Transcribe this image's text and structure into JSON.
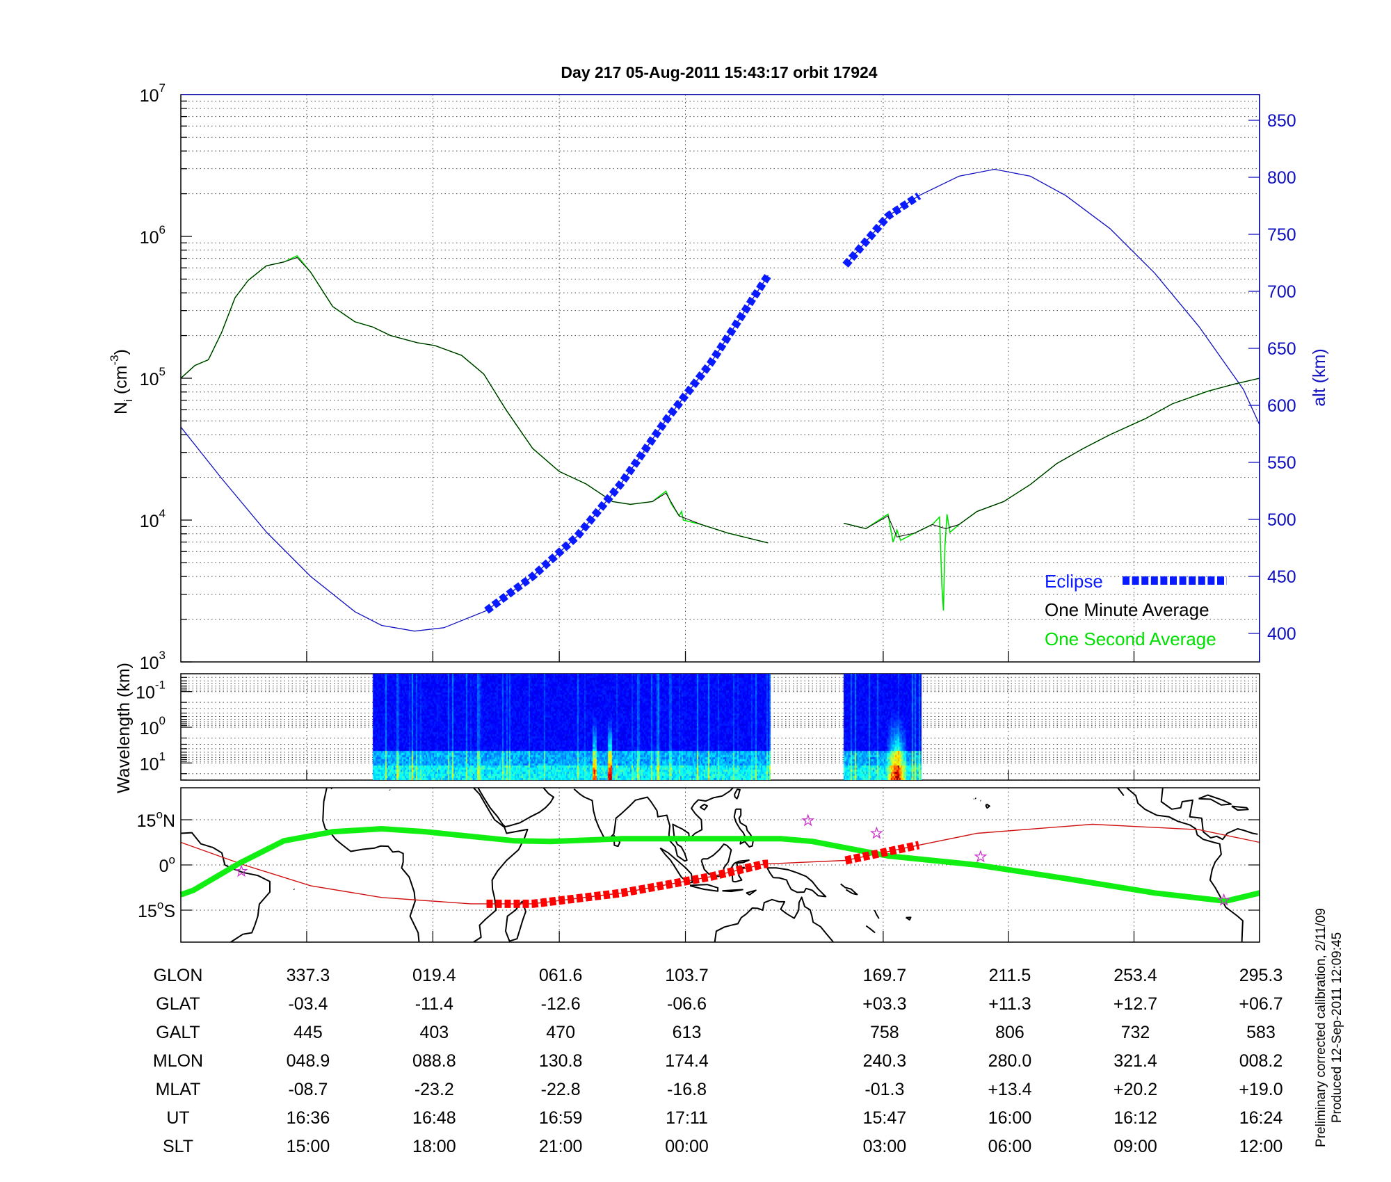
{
  "title": "Day 217  05-Aug-2011 15:43:17   orbit 17924",
  "footnote": {
    "line1": "Preliminary corrected calibration, 2/11/09",
    "line2": "Produced 12-Sep-2011 12:09:45"
  },
  "colors": {
    "eclipse": "#0a1aff",
    "minute": "#000000",
    "second": "#00e000",
    "alt": "#1010c0",
    "orbit": "#d01010",
    "dip_equator": "#11ee11",
    "star": "#cc33cc"
  },
  "chart_data": [
    {
      "type": "line",
      "title": "Day 217  05-Aug-2011 15:43:17   orbit 17924",
      "xlabel": "",
      "ylabel": "N",
      "ylabel_sub": "i",
      "ylabel_unit": "(cm",
      "ylabel_unit_exp": "-3",
      "ylabel_close": ")",
      "y2label": "alt (km)",
      "yscale": "log",
      "ylim": [
        1000,
        10000000
      ],
      "y2lim": [
        375,
        875
      ],
      "xlim": [
        295.3,
        655.3
      ],
      "grid": true,
      "yticks": [
        {
          "base": "10",
          "exp": "3",
          "value": 3
        },
        {
          "base": "10",
          "exp": "4",
          "value": 4
        },
        {
          "base": "10",
          "exp": "5",
          "value": 5
        },
        {
          "base": "10",
          "exp": "6",
          "value": 6
        },
        {
          "base": "10",
          "exp": "7",
          "value": 7
        }
      ],
      "y2ticks": [
        "400",
        "450",
        "500",
        "550",
        "600",
        "650",
        "700",
        "750",
        "800",
        "850"
      ],
      "legend": {
        "placement": "bottom-right",
        "eclipse": "Eclipse",
        "minute": "One Minute Average",
        "second": "One Second Average"
      },
      "series": [
        {
          "name": "One Minute Average",
          "segments": [
            {
              "x": [
                295.3,
                300.0,
                304.5,
                308.9,
                313.4,
                317.8,
                323.8,
                329.7,
                334.1,
                338.6,
                346.0,
                353.4,
                359.3,
                365.3,
                374.2,
                380.1,
                389.0,
                396.4,
                403.8,
                412.7,
                421.6,
                430.5,
                439.4,
                445.3,
                452.7,
                457.2,
                461.6,
                469.0,
                477.9,
                491.3
              ],
              "y": [
                100000.0,
                123000.0,
                135000.0,
                210000.0,
                370000.0,
                490000.0,
                620000.0,
                660000.0,
                710000.0,
                560000.0,
                320000.0,
                250000.0,
                230000.0,
                200000.0,
                178000.0,
                170000.0,
                145000.0,
                107000.0,
                60000.0,
                32000.0,
                22000.0,
                18000.0,
                13500.0,
                12900.0,
                13500.0,
                15500.0,
                10700.0,
                9300.0,
                8100.0,
                6900.0
              ]
            },
            {
              "x": [
                516.5,
                523.9,
                531.3,
                534.3,
                540.2,
                546.1,
                550.6,
                555.0,
                561.0,
                569.9,
                578.8,
                587.6,
                596.5,
                605.4,
                617.3,
                626.2,
                638.0,
                646.9,
                655.3
              ],
              "y": [
                9500.0,
                8700.0,
                10700.0,
                7600.0,
                8100.0,
                9300.0,
                8700.0,
                9300.0,
                11500.0,
                13500.0,
                17800.0,
                25000.0,
                32000.0,
                40000.0,
                52000.0,
                66000.0,
                81000.0,
                91000.0,
                100000.0
              ]
            }
          ]
        },
        {
          "name": "One Second Average",
          "segments": [
            {
              "x": [
                295.3,
                300.0,
                304.5,
                308.9,
                313.4,
                317.8,
                323.8,
                329.7,
                334.1,
                338.6,
                346.0,
                353.4,
                359.3,
                365.3,
                374.2,
                380.1,
                389.0,
                396.4,
                403.8,
                412.7,
                421.6,
                430.5,
                439.4,
                445.3,
                452.7,
                457.2,
                459.0,
                461.6,
                462.4,
                463.0,
                469.0,
                477.9,
                491.3
              ],
              "y": [
                100000.0,
                123000.0,
                135000.0,
                210000.0,
                370000.0,
                490000.0,
                620000.0,
                660000.0,
                730000.0,
                560000.0,
                320000.0,
                250000.0,
                230000.0,
                200000.0,
                178000.0,
                170000.0,
                145000.0,
                107000.0,
                60000.0,
                32000.0,
                22000.0,
                18000.0,
                13500.0,
                12900.0,
                13500.0,
                16000.0,
                13000.0,
                10700.0,
                11500.0,
                10000.0,
                9300.0,
                8100.0,
                6900.0
              ]
            },
            {
              "x": [
                516.5,
                523.9,
                531.3,
                533.0,
                534.3,
                535.5,
                540.2,
                546.1,
                548.5,
                549.3,
                549.8,
                550.3,
                551.0,
                552.0,
                555.0,
                561.0,
                569.9,
                578.8,
                587.6,
                596.5,
                605.4,
                617.3,
                626.2,
                638.0,
                646.9,
                655.3
              ],
              "y": [
                9500.0,
                8700.0,
                11000.0,
                7000.0,
                8500.0,
                7200.0,
                8100.0,
                9300.0,
                10500.0,
                3400.0,
                2300.0,
                6500.0,
                11000.0,
                8200.0,
                9300.0,
                11500.0,
                13500.0,
                17800.0,
                25000.0,
                32000.0,
                40000.0,
                52000.0,
                66000.0,
                81000.0,
                91000.0,
                100000.0
              ]
            }
          ]
        },
        {
          "name": "alt (km)",
          "axis": "right",
          "segments": [
            {
              "x": [
                295.3,
                308.9,
                323.8,
                338.6,
                353.4,
                362.3,
                373.3,
                383.1,
                397.3,
                412.7,
                427.5,
                442.4,
                457.2,
                472.1,
                491.3
              ],
              "y": [
                581,
                536,
                489,
                450,
                419,
                407,
                402,
                405,
                420,
                450,
                485,
                532,
                587,
                637,
                714
              ]
            },
            {
              "x": [
                517.1,
                531.3,
                541.7,
                555.0,
                566.9,
                578.8,
                590.6,
                605.4,
                620.3,
                635.1,
                649.9,
                655.3
              ],
              "y": [
                723,
                766,
                784,
                801,
                807,
                801,
                784,
                755,
                716,
                669,
                614,
                583
              ]
            }
          ]
        },
        {
          "name": "Eclipse",
          "ranges": [
            [
              397.3,
              491.3
            ],
            [
              517.1,
              541.7
            ]
          ]
        }
      ]
    },
    {
      "type": "heatmap",
      "ylabel": "Wavelength (km)",
      "yscale": "log",
      "yticks": [
        {
          "base": "10",
          "exp": "-1",
          "value": -1
        },
        {
          "base": "10",
          "exp": "0",
          "value": 0
        },
        {
          "base": "10",
          "exp": "1",
          "value": 1
        }
      ],
      "data_ranges": [
        [
          359.3,
          492.0
        ],
        [
          516.5,
          542.3
        ]
      ],
      "colormap": "jet",
      "hotspots": [
        {
          "x": 433.0,
          "intensity": 0.55
        },
        {
          "x": 438.5,
          "intensity": 0.65
        },
        {
          "x": 534.0,
          "intensity": 0.7
        }
      ]
    },
    {
      "type": "map",
      "ylabels": [
        {
          "deg": "15",
          "o": "o",
          "h": "N",
          "lat": 15
        },
        {
          "deg": "0",
          "o": "o",
          "h": "",
          "lat": 0
        },
        {
          "deg": "15",
          "o": "o",
          "h": "S",
          "lat": -15
        }
      ],
      "ylim": [
        -25.6,
        25.6
      ],
      "dip_equator": {
        "lon": [
          295.3,
          299.5,
          314.9,
          329.7,
          346.0,
          362.3,
          377.1,
          406.8,
          418.6,
          442.4,
          460.1,
          495.7,
          506.1,
          531.3,
          561.0,
          590.6,
          620.3,
          644.0,
          655.3
        ],
        "lat": [
          -9.9,
          -8.4,
          0.6,
          8.0,
          11.0,
          12.0,
          11.0,
          8.0,
          7.8,
          8.7,
          8.7,
          8.7,
          7.8,
          3.0,
          0.0,
          -4.5,
          -9.3,
          -12.0,
          -9.3
        ]
      },
      "orbit_track": {
        "lon": [
          295.3,
          316.4,
          338.6,
          362.3,
          392.0,
          412.7,
          442.4,
          472.1,
          489.9,
          517.1,
          541.7,
          561.0,
          599.5,
          635.1,
          655.3
        ],
        "lat": [
          7.5,
          0.0,
          -6.9,
          -10.8,
          -12.9,
          -12.9,
          -9.3,
          -3.9,
          0.3,
          1.5,
          6.6,
          10.5,
          13.5,
          11.7,
          7.5
        ]
      },
      "eclipse_ranges": [
        [
          397.3,
          491.3
        ],
        [
          517.1,
          541.7
        ]
      ],
      "stars": [
        {
          "lon": 315.5,
          "lat": -2.1
        },
        {
          "lon": 504.6,
          "lat": 14.7
        },
        {
          "lon": 527.5,
          "lat": 10.5
        },
        {
          "lon": 562.2,
          "lat": 2.7
        },
        {
          "lon": 643.4,
          "lat": -11.7
        }
      ]
    }
  ],
  "table": {
    "tick_lons": [
      337.3,
      379.4,
      421.6,
      463.7,
      529.7,
      571.5,
      613.4,
      655.3
    ],
    "rows": [
      {
        "label": "GLON",
        "values": [
          "337.3",
          "019.4",
          "061.6",
          "103.7",
          "169.7",
          "211.5",
          "253.4",
          "295.3"
        ]
      },
      {
        "label": "GLAT",
        "values": [
          "-03.4",
          "-11.4",
          "-12.6",
          "-06.6",
          "+03.3",
          "+11.3",
          "+12.7",
          "+06.7"
        ]
      },
      {
        "label": "GALT",
        "values": [
          "445",
          "403",
          "470",
          "613",
          "758",
          "806",
          "732",
          "583"
        ]
      },
      {
        "label": "MLON",
        "values": [
          "048.9",
          "088.8",
          "130.8",
          "174.4",
          "240.3",
          "280.0",
          "321.4",
          "008.2"
        ]
      },
      {
        "label": "MLAT",
        "values": [
          "-08.7",
          "-23.2",
          "-22.8",
          "-16.8",
          "-01.3",
          "+13.4",
          "+20.2",
          "+19.0"
        ]
      },
      {
        "label": "UT",
        "values": [
          "16:36",
          "16:48",
          "16:59",
          "17:11",
          "15:47",
          "16:00",
          "16:12",
          "16:24"
        ]
      },
      {
        "label": "SLT",
        "values": [
          "15:00",
          "18:00",
          "21:00",
          "00:00",
          "03:00",
          "06:00",
          "09:00",
          "12:00"
        ]
      }
    ]
  }
}
